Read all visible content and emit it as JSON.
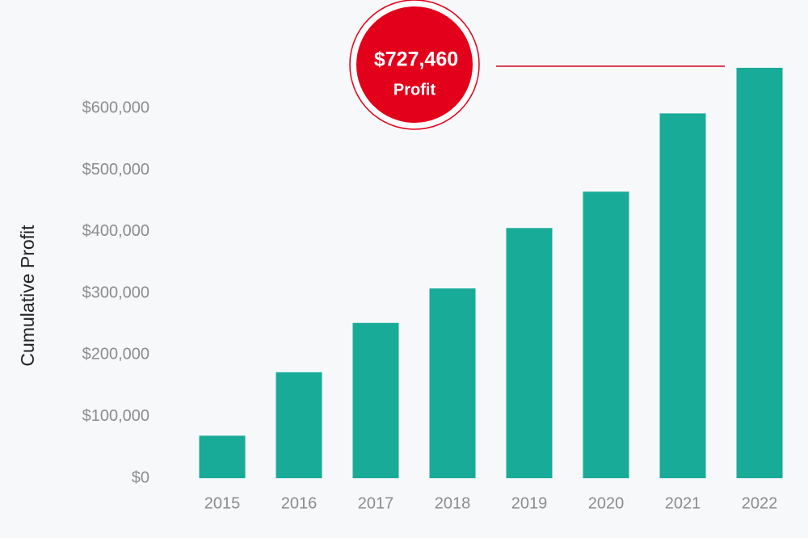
{
  "chart_data": {
    "type": "bar",
    "y_axis_label": "Cumulative Profit",
    "annotation": {
      "value_text": "$727,460",
      "label": "Profit"
    },
    "categories": [
      "2015",
      "2016",
      "2017",
      "2018",
      "2019",
      "2020",
      "2021",
      "2022"
    ],
    "values": [
      69000,
      172000,
      252000,
      308000,
      406000,
      465000,
      592000,
      666000
    ],
    "color": "#17ab98",
    "ylim": [
      0,
      700000
    ],
    "yticks": [
      {
        "value": 0,
        "label": "$0"
      },
      {
        "value": 100000,
        "label": "$100,000"
      },
      {
        "value": 200000,
        "label": "$200,000"
      },
      {
        "value": 300000,
        "label": "$300,000"
      },
      {
        "value": 400000,
        "label": "$400,000"
      },
      {
        "value": 500000,
        "label": "$500,000"
      },
      {
        "value": 600000,
        "label": "$600,000"
      }
    ],
    "grid": false
  }
}
